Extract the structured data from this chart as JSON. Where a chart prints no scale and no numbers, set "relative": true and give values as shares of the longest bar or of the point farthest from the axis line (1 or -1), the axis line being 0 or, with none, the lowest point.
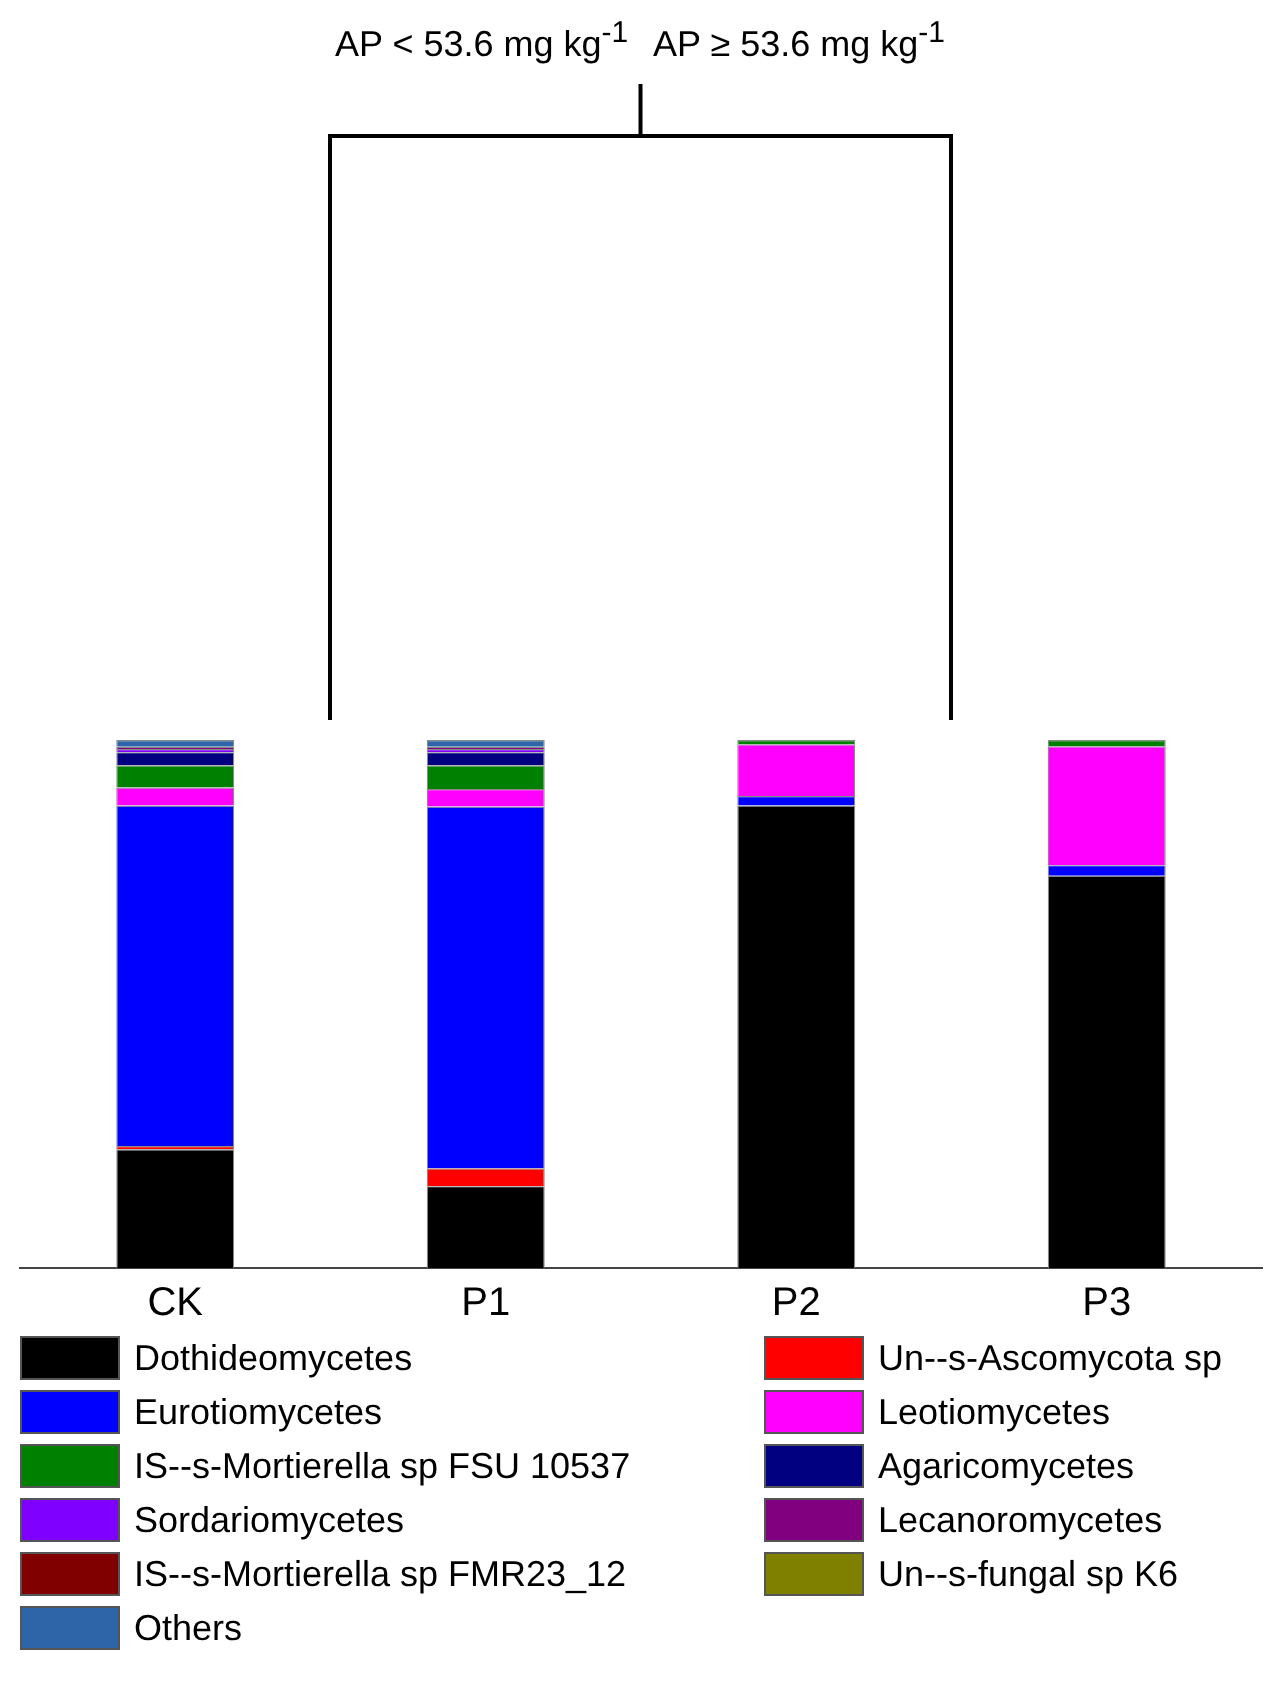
{
  "chart_data": {
    "type": "bar",
    "stacked": true,
    "relative": true,
    "legend": "bottom",
    "categories": [
      "CK",
      "P1",
      "P2",
      "P3"
    ],
    "annotations": [
      "AP < 53.6 mg kg$^{-1}$",
      "AP ≥ 53.6 mg kg$^{-1}$"
    ],
    "series": [
      {
        "name": "Dothideomycetes",
        "color": "#000000",
        "values": [
          0.225,
          0.155,
          0.876,
          0.743
        ]
      },
      {
        "name": "Un--s-Ascomycota sp",
        "color": "#ff0000",
        "values": [
          0.006,
          0.034,
          0,
          0
        ]
      },
      {
        "name": "Eurotiomycetes",
        "color": "#0000ff",
        "values": [
          0.645,
          0.685,
          0.018,
          0.02
        ]
      },
      {
        "name": "Leotiomycetes",
        "color": "#ff00ff",
        "values": [
          0.034,
          0.033,
          0.098,
          0.225
        ]
      },
      {
        "name": "IS--s-Mortierella sp FSU 10537",
        "color": "#008000",
        "values": [
          0.042,
          0.045,
          0.008,
          0.012
        ]
      },
      {
        "name": "Agaricomycetes",
        "color": "#000080",
        "values": [
          0.025,
          0.025,
          0,
          0
        ]
      },
      {
        "name": "Sordariomycetes",
        "color": "#8000ff",
        "values": [
          0.006,
          0.006,
          0,
          0
        ]
      },
      {
        "name": "Lecanoromycetes",
        "color": "#800080",
        "values": [
          0.004,
          0.004,
          0,
          0
        ]
      },
      {
        "name": "IS--s-Mortierella sp FMR23_12",
        "color": "#800000",
        "values": [
          0,
          0,
          0,
          0
        ]
      },
      {
        "name": "Un--s-fungal sp K6",
        "color": "#808000",
        "values": [
          0,
          0,
          0,
          0
        ]
      },
      {
        "name": "Others",
        "color": "#2e64a8",
        "values": [
          0.013,
          0.013,
          0,
          0
        ]
      }
    ]
  }
}
